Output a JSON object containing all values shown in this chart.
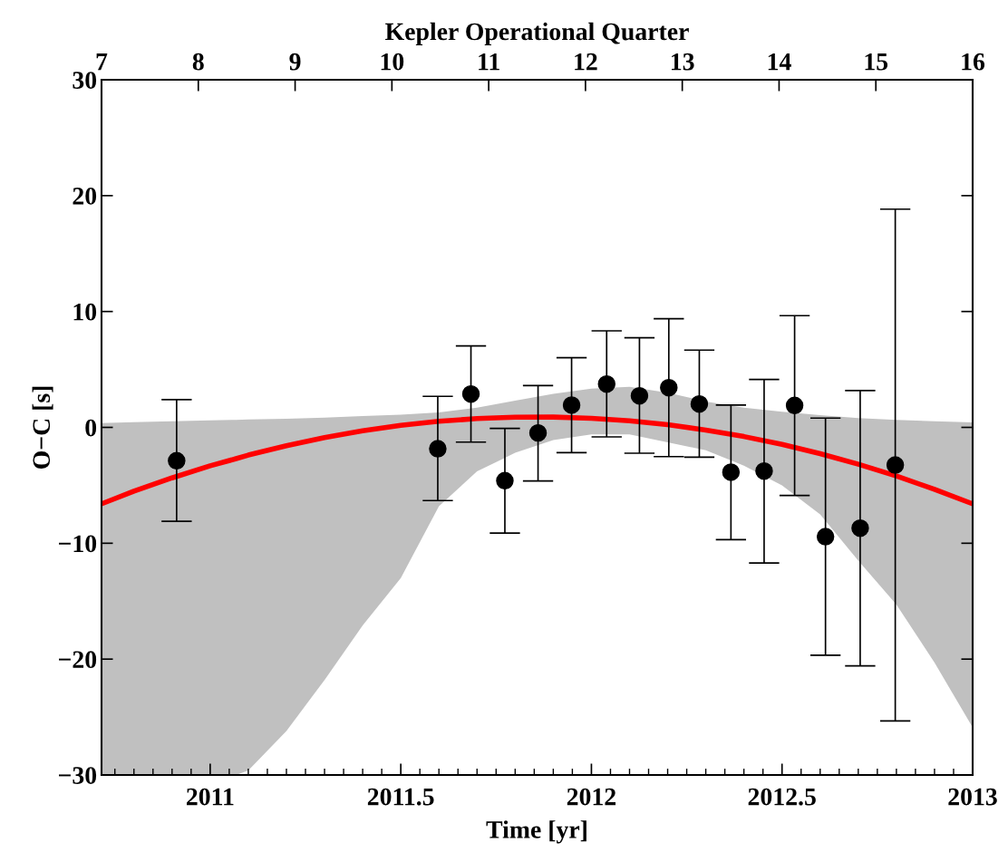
{
  "chart_data": {
    "type": "scatter",
    "xlabel": "Time [yr]",
    "ylabel": "O−C [s]",
    "x2label": "Kepler Operational Quarter",
    "xlim": [
      2010.715,
      2013
    ],
    "xticks": [
      2011,
      2011.5,
      2012,
      2012.5,
      2013
    ],
    "ylim": [
      -30,
      30
    ],
    "yticks": [
      {
        "value": -30,
        "label": "−30"
      },
      {
        "value": -20,
        "label": "−20"
      },
      {
        "value": -10,
        "label": "−10"
      },
      0,
      10,
      20,
      30
    ],
    "x2lim": [
      7,
      16
    ],
    "x2ticks": [
      7,
      8,
      9,
      10,
      11,
      12,
      13,
      14,
      15,
      16
    ],
    "grid": false,
    "legend": false,
    "marker": "circle",
    "series": [
      {
        "type": "line",
        "color": "#ff0000",
        "marker": "none",
        "line_style": "solid",
        "x": [
          2010.715,
          2010.8,
          2010.9,
          2011.0,
          2011.068,
          2011.1,
          2011.2,
          2011.3,
          2011.4,
          2011.5,
          2011.6,
          2011.7,
          2011.8,
          2011.9,
          2012.0,
          2012.1,
          2012.2,
          2012.3,
          2012.4,
          2012.5,
          2012.6,
          2012.7,
          2012.8,
          2012.9,
          2013.0
        ],
        "values": [
          -6.6,
          -5.5,
          -4.36,
          -3.32,
          -2.7,
          -2.39,
          -1.58,
          -0.88,
          -0.3,
          0.17,
          0.52,
          0.76,
          0.88,
          0.89,
          0.78,
          0.56,
          0.23,
          -0.23,
          -0.79,
          -1.47,
          -2.27,
          -3.18,
          -4.2,
          -5.35,
          -6.6
        ],
        "upper": [
          0.38,
          0.45,
          0.52,
          0.6,
          0.65,
          0.68,
          0.75,
          0.85,
          0.97,
          1.1,
          1.3,
          1.7,
          2.3,
          2.9,
          3.35,
          3.5,
          3.0,
          2.23,
          1.7,
          1.35,
          1.05,
          0.8,
          0.65,
          0.52,
          0.43
        ],
        "lower": [
          -30,
          -30,
          -30,
          -30,
          -30,
          -29.6,
          -26.2,
          -21.8,
          -17.1,
          -13.0,
          -6.8,
          -3.8,
          -2.2,
          -1.1,
          -0.6,
          -0.6,
          -1.3,
          -1.97,
          -3.3,
          -5.0,
          -7.5,
          -11.5,
          -15.3,
          -20.3,
          -25.9
        ]
      },
      {
        "color": "#000000",
        "x": [
          2010.912,
          2011.597,
          2011.684,
          2011.773,
          2011.86,
          2011.948,
          2012.04,
          2012.126,
          2012.203,
          2012.283,
          2012.366,
          2012.453,
          2012.533,
          2012.614,
          2012.705,
          2012.797
        ],
        "values": [
          -2.88,
          -1.84,
          2.88,
          -4.6,
          -0.48,
          1.92,
          3.74,
          2.72,
          3.43,
          2.02,
          -3.87,
          -3.77,
          1.89,
          -9.43,
          -8.7,
          -3.25
        ],
        "errors": [
          [
            -8.1,
            2.39
          ],
          [
            -6.32,
            2.68
          ],
          [
            -1.27,
            7.03
          ],
          [
            -9.12,
            -0.09
          ],
          [
            -4.63,
            3.61
          ],
          [
            -2.18,
            6.01
          ],
          [
            -0.82,
            8.33
          ],
          [
            -2.23,
            7.73
          ],
          [
            -2.52,
            9.38
          ],
          [
            -2.57,
            6.67
          ],
          [
            -9.69,
            1.92
          ],
          [
            -11.7,
            4.13
          ],
          [
            -5.88,
            9.64
          ],
          [
            -19.67,
            0.8
          ],
          [
            -20.58,
            3.18
          ],
          [
            -25.33,
            18.83
          ]
        ]
      }
    ]
  }
}
